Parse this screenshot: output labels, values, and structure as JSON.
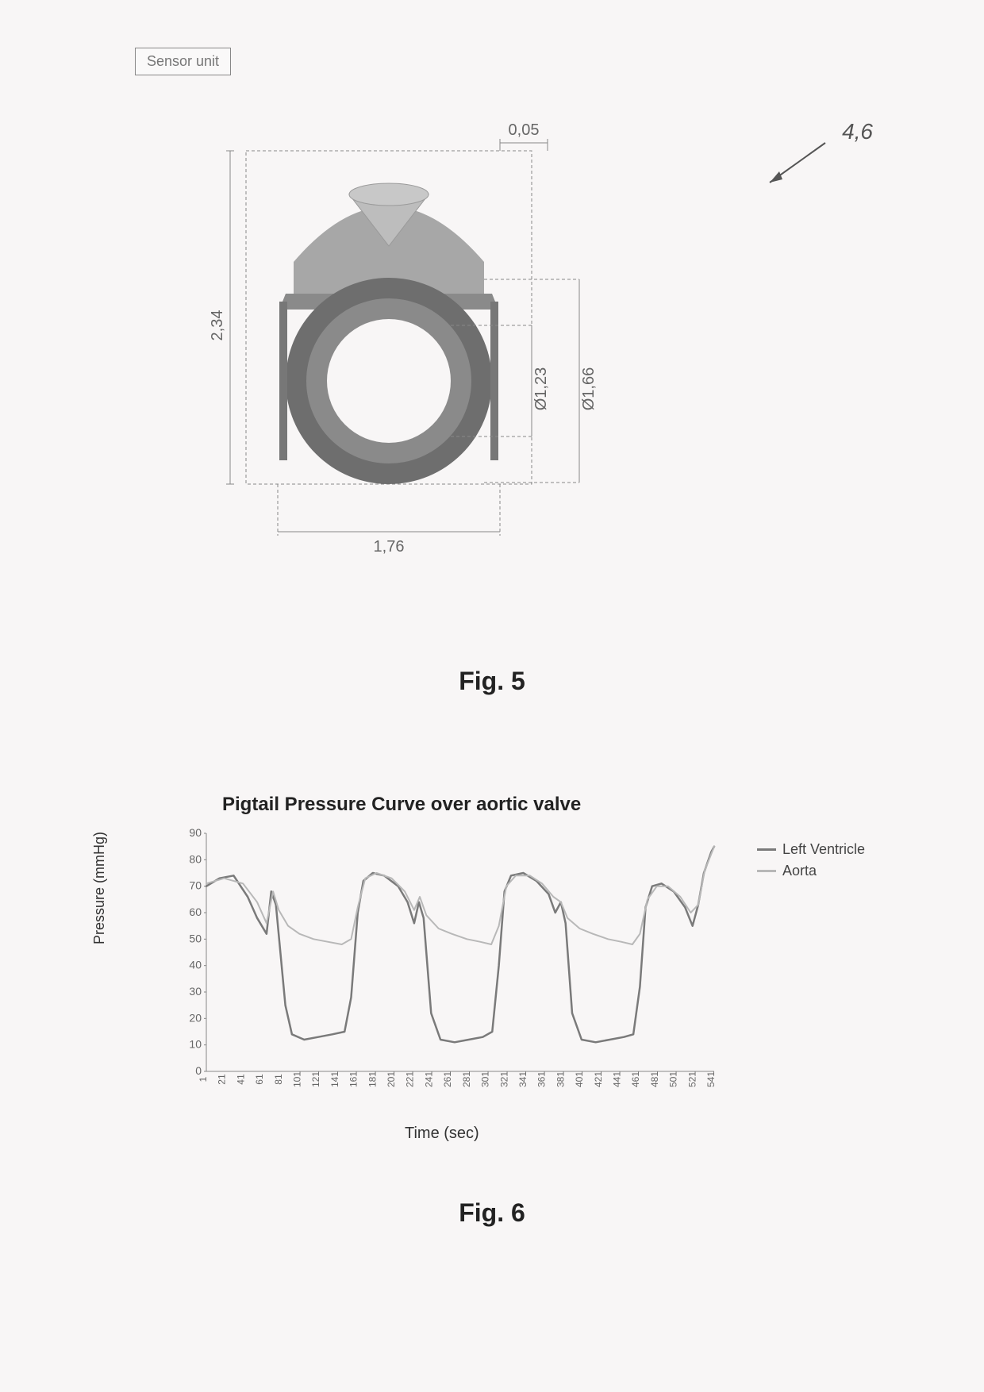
{
  "fig5": {
    "sensor_label": "Sensor unit",
    "callout_label": "4,6",
    "caption": "Fig. 5",
    "dimensions": {
      "top": "0,05",
      "left_height": "2,34",
      "bottom_width": "1,76",
      "inner_dia": "Ø1,23",
      "outer_dia": "Ø1,66"
    },
    "ring_colors": {
      "outer_band": "#8a8a8a",
      "inner_band": "#6e6e6e",
      "top_cap": "#a7a7a7",
      "top_cone": "#bdbdbd",
      "background": "transparent"
    }
  },
  "fig6": {
    "caption": "Fig. 6",
    "chart": {
      "type": "line",
      "title": "Pigtail Pressure Curve over aortic valve",
      "ylabel": "Pressure (mmHg)",
      "xlabel": "Time (sec)",
      "ylim": [
        0,
        90
      ],
      "ytick_step": 10,
      "yticks": [
        0,
        10,
        20,
        30,
        40,
        50,
        60,
        70,
        80,
        90
      ],
      "xticks": [
        1,
        21,
        41,
        61,
        81,
        101,
        121,
        141,
        161,
        181,
        201,
        221,
        241,
        261,
        281,
        301,
        321,
        341,
        361,
        381,
        401,
        421,
        441,
        461,
        481,
        501,
        521,
        541
      ],
      "series": [
        {
          "name": "Left Ventricle",
          "color": "#7a7a7a",
          "stroke_width": 2.5,
          "points": [
            [
              1,
              70
            ],
            [
              15,
              73
            ],
            [
              30,
              74
            ],
            [
              45,
              66
            ],
            [
              55,
              58
            ],
            [
              65,
              52
            ],
            [
              70,
              68
            ],
            [
              75,
              63
            ],
            [
              85,
              25
            ],
            [
              92,
              14
            ],
            [
              105,
              12
            ],
            [
              120,
              13
            ],
            [
              135,
              14
            ],
            [
              148,
              15
            ],
            [
              155,
              28
            ],
            [
              162,
              60
            ],
            [
              168,
              72
            ],
            [
              178,
              75
            ],
            [
              190,
              74
            ],
            [
              205,
              70
            ],
            [
              215,
              64
            ],
            [
              222,
              56
            ],
            [
              227,
              64
            ],
            [
              232,
              58
            ],
            [
              240,
              22
            ],
            [
              250,
              12
            ],
            [
              265,
              11
            ],
            [
              280,
              12
            ],
            [
              295,
              13
            ],
            [
              305,
              15
            ],
            [
              312,
              40
            ],
            [
              318,
              68
            ],
            [
              325,
              74
            ],
            [
              338,
              75
            ],
            [
              352,
              72
            ],
            [
              365,
              67
            ],
            [
              372,
              60
            ],
            [
              378,
              64
            ],
            [
              383,
              56
            ],
            [
              390,
              22
            ],
            [
              400,
              12
            ],
            [
              415,
              11
            ],
            [
              430,
              12
            ],
            [
              445,
              13
            ],
            [
              455,
              14
            ],
            [
              462,
              32
            ],
            [
              468,
              62
            ],
            [
              475,
              70
            ],
            [
              485,
              71
            ],
            [
              498,
              68
            ],
            [
              510,
              62
            ],
            [
              518,
              55
            ],
            [
              524,
              63
            ],
            [
              530,
              75
            ],
            [
              538,
              83
            ],
            [
              541,
              85
            ]
          ]
        },
        {
          "name": "Aorta",
          "color": "#b8b8b8",
          "stroke_width": 2,
          "points": [
            [
              1,
              71
            ],
            [
              20,
              73
            ],
            [
              40,
              71
            ],
            [
              55,
              64
            ],
            [
              65,
              56
            ],
            [
              72,
              68
            ],
            [
              78,
              61
            ],
            [
              88,
              55
            ],
            [
              100,
              52
            ],
            [
              115,
              50
            ],
            [
              130,
              49
            ],
            [
              145,
              48
            ],
            [
              155,
              50
            ],
            [
              162,
              62
            ],
            [
              170,
              73
            ],
            [
              182,
              75
            ],
            [
              198,
              73
            ],
            [
              212,
              68
            ],
            [
              222,
              61
            ],
            [
              228,
              66
            ],
            [
              235,
              59
            ],
            [
              248,
              54
            ],
            [
              262,
              52
            ],
            [
              278,
              50
            ],
            [
              292,
              49
            ],
            [
              304,
              48
            ],
            [
              312,
              55
            ],
            [
              320,
              70
            ],
            [
              330,
              74
            ],
            [
              345,
              74
            ],
            [
              358,
              71
            ],
            [
              370,
              66
            ],
            [
              378,
              64
            ],
            [
              385,
              58
            ],
            [
              398,
              54
            ],
            [
              412,
              52
            ],
            [
              428,
              50
            ],
            [
              442,
              49
            ],
            [
              454,
              48
            ],
            [
              462,
              52
            ],
            [
              470,
              65
            ],
            [
              480,
              70
            ],
            [
              492,
              70
            ],
            [
              505,
              66
            ],
            [
              516,
              60
            ],
            [
              524,
              63
            ],
            [
              531,
              76
            ],
            [
              541,
              85
            ]
          ]
        }
      ],
      "line_color": "#7a7a7a",
      "grid_color": "#d8d8d8",
      "background_color": "#f8f6f6",
      "title_fontsize": 24,
      "label_fontsize": 18,
      "tick_fontsize": 13
    }
  }
}
